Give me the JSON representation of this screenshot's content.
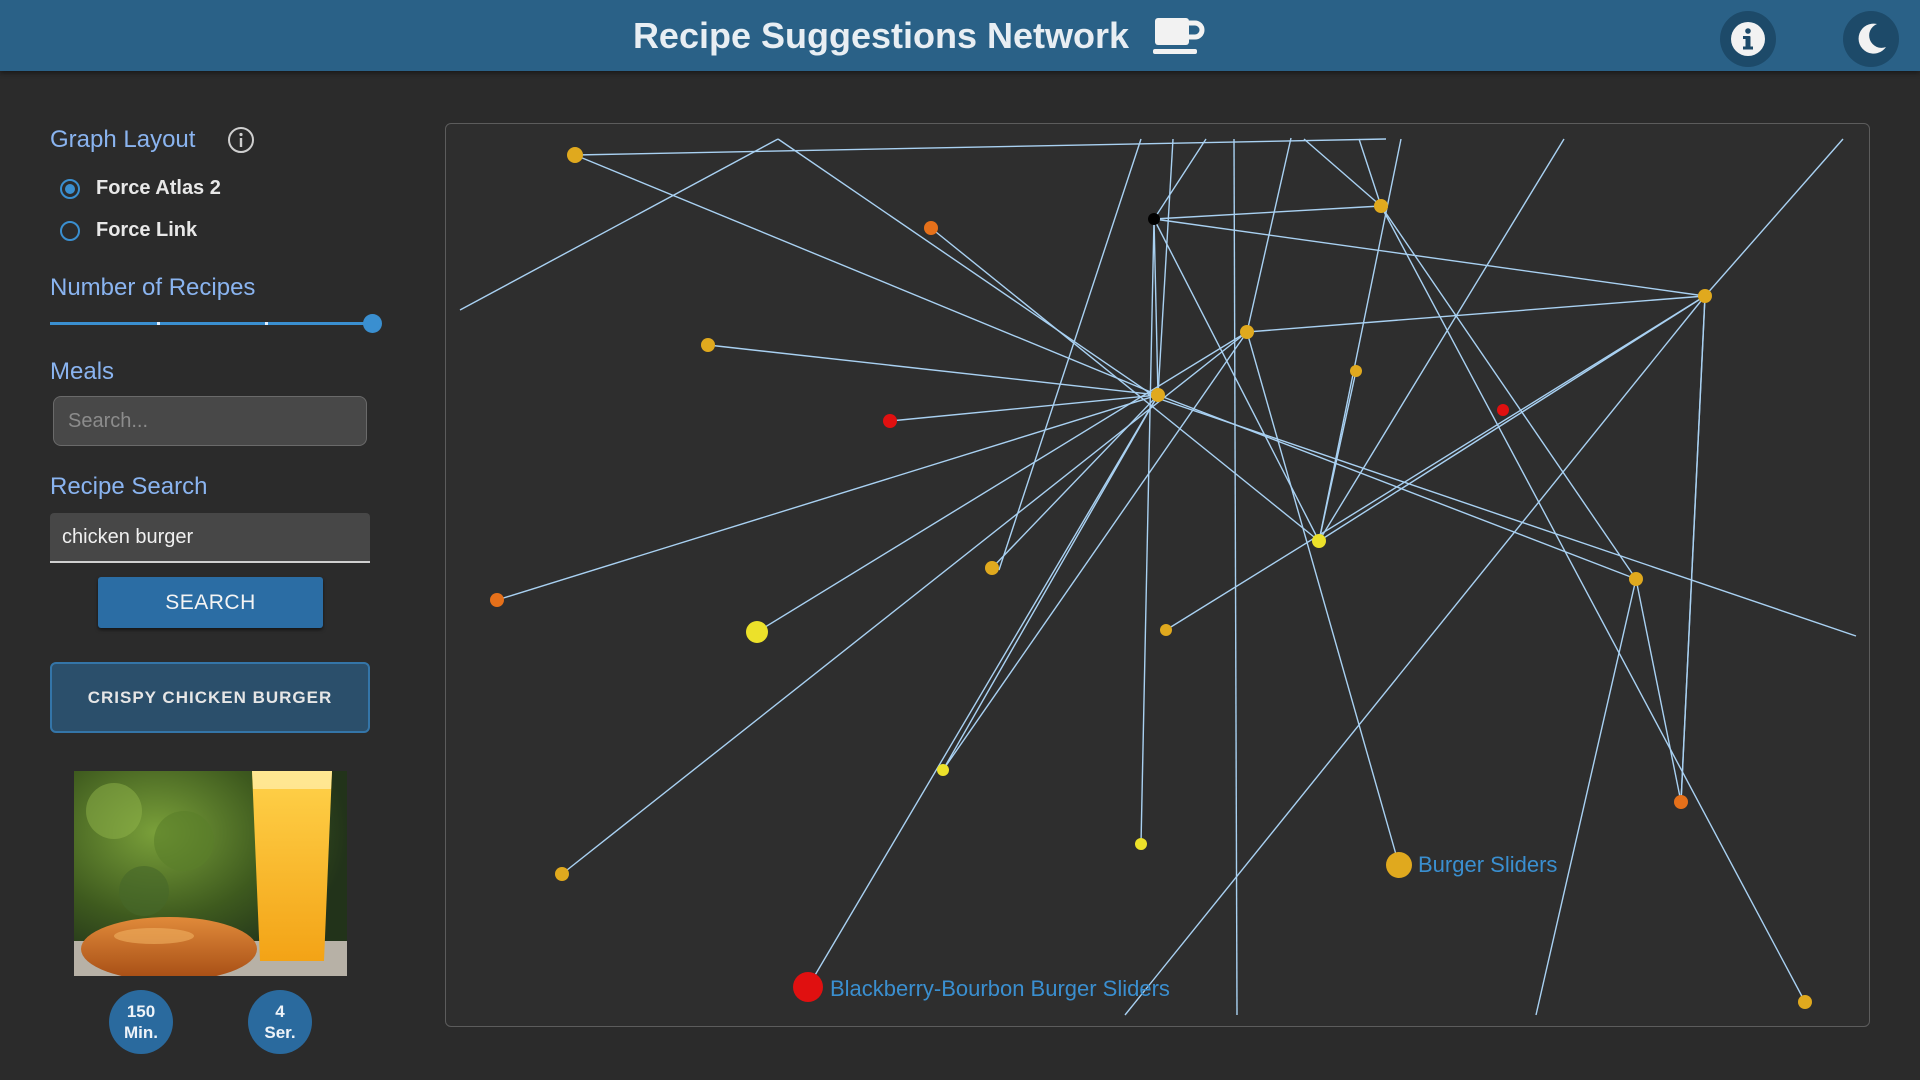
{
  "header": {
    "title": "Recipe Suggestions Network",
    "icons": {
      "title_icon": "coffee-cup-icon",
      "info": "info-icon",
      "theme": "moon-icon"
    },
    "colors": {
      "bar": "#2a6187",
      "button": "#1d4a69"
    }
  },
  "sidebar": {
    "graph_layout": {
      "label": "Graph Layout",
      "options": [
        {
          "label": "Force Atlas 2",
          "selected": true
        },
        {
          "label": "Force Link",
          "selected": false
        }
      ]
    },
    "number_of_recipes": {
      "label": "Number of Recipes",
      "value_fraction": 1.0,
      "steps": 3
    },
    "meals": {
      "label": "Meals",
      "placeholder": "Search..."
    },
    "recipe_search": {
      "label": "Recipe Search",
      "value": "chicken burger",
      "button_label": "SEARCH"
    },
    "result": {
      "title": "CRISPY CHICKEN BURGER"
    },
    "badges": [
      {
        "value": "150",
        "unit": "Min."
      },
      {
        "value": "4",
        "unit": "Ser."
      }
    ]
  },
  "graph": {
    "colors": {
      "edge": "#a9d1f2",
      "label": "#3a8fd0",
      "panel_bg": "#2e2e2e"
    },
    "labels": [
      "Burger Sliders",
      "Blackberry-Bourbon Burger Sliders"
    ],
    "node_color_palette": {
      "gold": "#e0a91e",
      "orange": "#e5701a",
      "red": "#e01010",
      "yellow": "#ece12a",
      "black": "#000000"
    }
  }
}
